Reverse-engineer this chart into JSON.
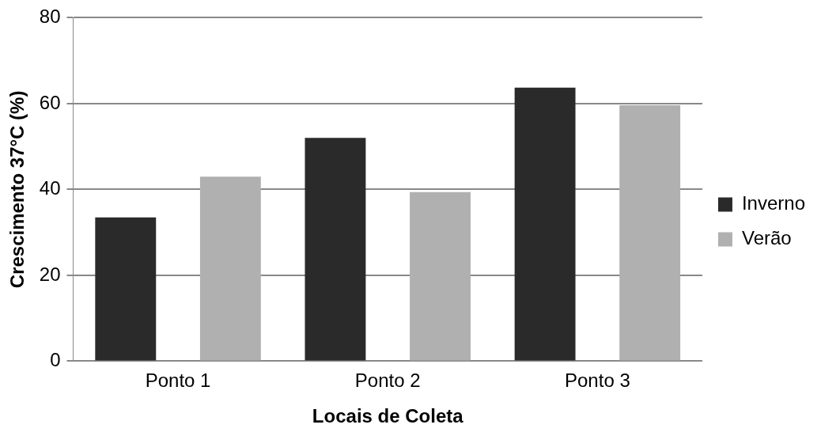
{
  "chart_data": {
    "type": "bar",
    "xlabel": "Locais de Coleta",
    "ylabel": "Crescimento 37°C (%)",
    "categories": [
      "Ponto 1",
      "Ponto 2",
      "Ponto 3"
    ],
    "series": [
      {
        "name": "Inverno",
        "color": "#2a2a2a",
        "values": [
          33.5,
          52,
          63.7
        ]
      },
      {
        "name": "Verão",
        "color": "#b0b0b0",
        "values": [
          43,
          39.4,
          59.6
        ]
      }
    ],
    "ylim": [
      0,
      80
    ],
    "yticks": [
      0,
      20,
      40,
      60,
      80
    ],
    "grid": "y",
    "legend": "right"
  }
}
